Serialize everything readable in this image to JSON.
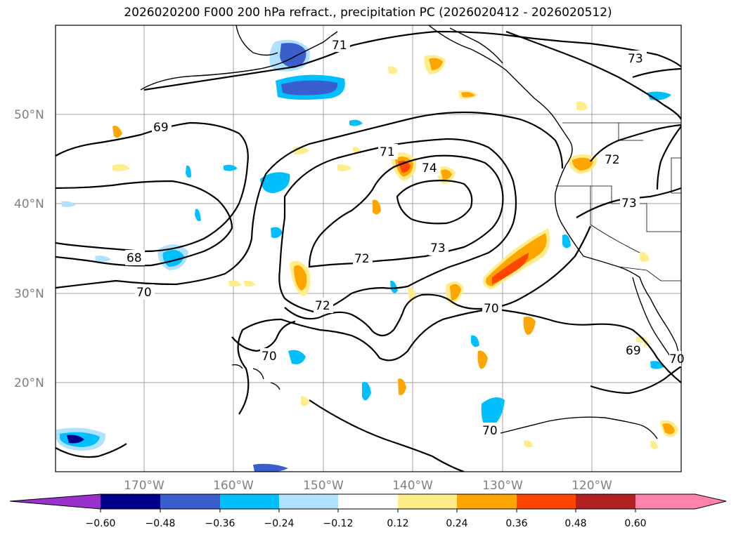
{
  "title": "2026020200 F000 200 hPa refract., precipitation PC (2026020412 - 2026020512)",
  "map": {
    "lat_labels": [
      "50°N",
      "40°N",
      "30°N",
      "20°N"
    ],
    "lon_labels": [
      "170°W",
      "160°W",
      "150°W",
      "140°W",
      "130°W",
      "120°W"
    ],
    "contour_labels": [
      "71",
      "73",
      "69",
      "71",
      "74",
      "72",
      "68",
      "73",
      "72",
      "70",
      "72",
      "70",
      "73",
      "70",
      "69",
      "70",
      "70"
    ]
  },
  "colorbar": {
    "levels": [
      "−0.60",
      "−0.48",
      "−0.36",
      "−0.24",
      "−0.12",
      "0.12",
      "0.24",
      "0.36",
      "0.48",
      "0.60"
    ],
    "colors": [
      "#9932cc",
      "#00008b",
      "#3a5fcd",
      "#00bfff",
      "#b0e2ff",
      "#ffffff",
      "#ffec8b",
      "#ffa500",
      "#ff4500",
      "#b22222",
      "#ff82ab"
    ]
  }
}
